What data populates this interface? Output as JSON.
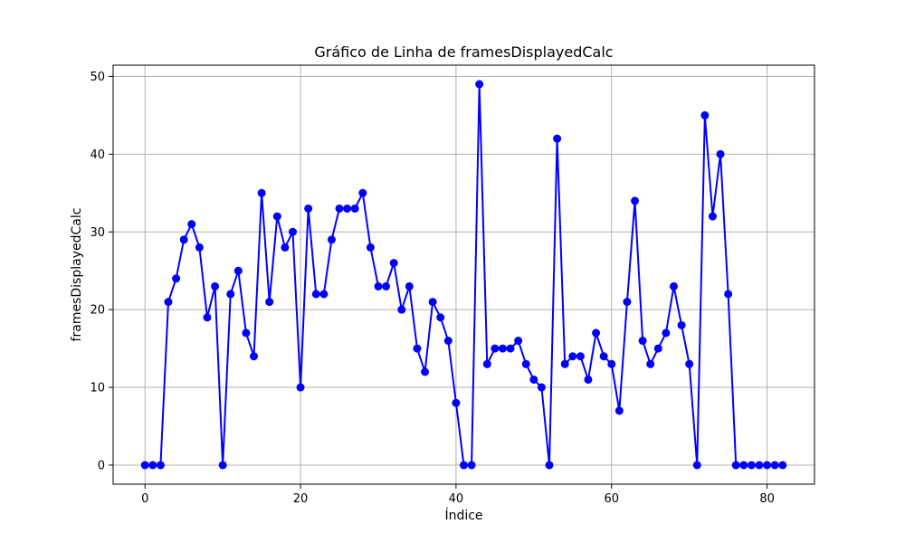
{
  "chart_data": {
    "type": "line",
    "title": "Gráfico de Linha de framesDisplayedCalc",
    "xlabel": "Índice",
    "ylabel": "framesDisplayedCalc",
    "xlim": [
      -4.1,
      86.1
    ],
    "ylim": [
      -2.45,
      51.45
    ],
    "xticks": [
      0,
      20,
      40,
      60,
      80
    ],
    "yticks": [
      0,
      10,
      20,
      30,
      40,
      50
    ],
    "grid": true,
    "marker": "circle",
    "color": "#0000ff",
    "series": [
      {
        "x": [
          0,
          1,
          2,
          3,
          4,
          5,
          6,
          7,
          8,
          9,
          10,
          11,
          12,
          13,
          14,
          15,
          16,
          17,
          18,
          19,
          20,
          21,
          22,
          23,
          24,
          25,
          26,
          27,
          28,
          29,
          30,
          31,
          32,
          33,
          34,
          35,
          36,
          37,
          38,
          39,
          40,
          41,
          42,
          43,
          44,
          45,
          46,
          47,
          48,
          49,
          50,
          51,
          52,
          53,
          54,
          55,
          56,
          57,
          58,
          59,
          60,
          61,
          62,
          63,
          64,
          65,
          66,
          67,
          68,
          69,
          70,
          71,
          72,
          73,
          74,
          75,
          76,
          77,
          78,
          79,
          80,
          81,
          82
        ],
        "values": [
          0,
          0,
          0,
          21,
          24,
          29,
          31,
          28,
          19,
          23,
          0,
          22,
          25,
          17,
          14,
          35,
          21,
          32,
          28,
          30,
          10,
          33,
          22,
          22,
          29,
          33,
          33,
          33,
          35,
          28,
          23,
          23,
          26,
          20,
          23,
          15,
          12,
          21,
          19,
          16,
          8,
          0,
          0,
          49,
          13,
          15,
          15,
          15,
          16,
          13,
          11,
          10,
          0,
          42,
          13,
          14,
          14,
          11,
          17,
          14,
          13,
          7,
          21,
          34,
          16,
          13,
          15,
          17,
          23,
          18,
          13,
          0,
          45,
          32,
          40,
          22,
          0,
          0,
          0,
          0,
          0,
          0,
          0
        ]
      }
    ]
  }
}
